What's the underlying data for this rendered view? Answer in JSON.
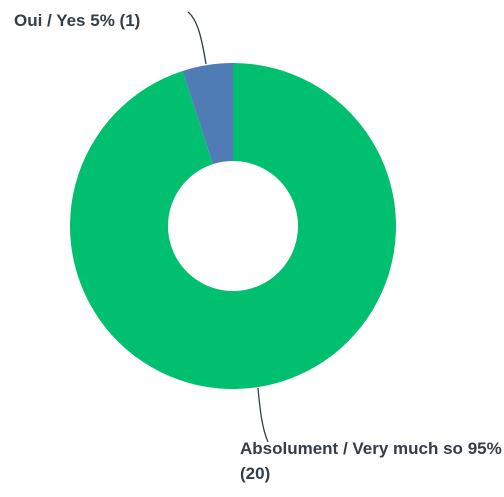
{
  "chart_data": {
    "type": "donut",
    "categories": [
      "Absolument / Very much so",
      "Oui / Yes"
    ],
    "values": [
      95,
      5
    ],
    "value_labels": [
      "95% (20)",
      "5% (1)"
    ],
    "colors": [
      "#00bf6f",
      "#507cb6"
    ]
  }
}
